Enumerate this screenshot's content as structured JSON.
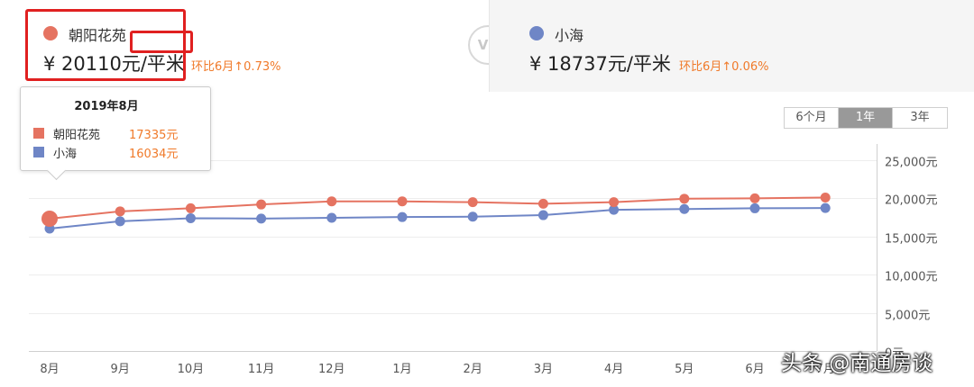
{
  "compare": {
    "left": {
      "name": "朝阳花苑",
      "price": "¥ 20110元/平米",
      "change": "环比6月↑0.73%",
      "color": "#e57361"
    },
    "vs": "VS",
    "right": {
      "name": "小海",
      "price": "¥ 18737元/平米",
      "change": "环比6月↑0.06%",
      "color": "#6f86c6"
    }
  },
  "change_color": "#f07a2a",
  "period_tabs": [
    {
      "label": "6个月",
      "active": false
    },
    {
      "label": "1年",
      "active": true
    },
    {
      "label": "3年",
      "active": false
    }
  ],
  "tooltip": {
    "title": "2019年8月",
    "rows": [
      {
        "name": "朝阳花苑",
        "value": "17335元",
        "color": "#e57361"
      },
      {
        "name": "小海",
        "value": "16034元",
        "color": "#6f86c6"
      }
    ]
  },
  "watermark": "头条 @南通房谈",
  "chart_data": {
    "type": "line",
    "categories": [
      "8月",
      "9月",
      "10月",
      "11月",
      "12月",
      "1月",
      "2月",
      "3月",
      "4月",
      "5月",
      "6月",
      "7月"
    ],
    "y_tick_labels": [
      "25,000元",
      "20,000元",
      "15,000元",
      "10,000元",
      "5,000元",
      "0元"
    ],
    "ylim": [
      0,
      25000
    ],
    "y_axis_side": "right",
    "grid": true,
    "series": [
      {
        "name": "朝阳花苑",
        "color": "#e57361",
        "values": [
          17335,
          18300,
          18700,
          19200,
          19600,
          19600,
          19500,
          19300,
          19500,
          19950,
          20000,
          20110
        ]
      },
      {
        "name": "小海",
        "color": "#6f86c6",
        "values": [
          16034,
          17000,
          17400,
          17350,
          17450,
          17550,
          17600,
          17800,
          18500,
          18600,
          18700,
          18737
        ]
      }
    ],
    "highlight_index": 0
  }
}
